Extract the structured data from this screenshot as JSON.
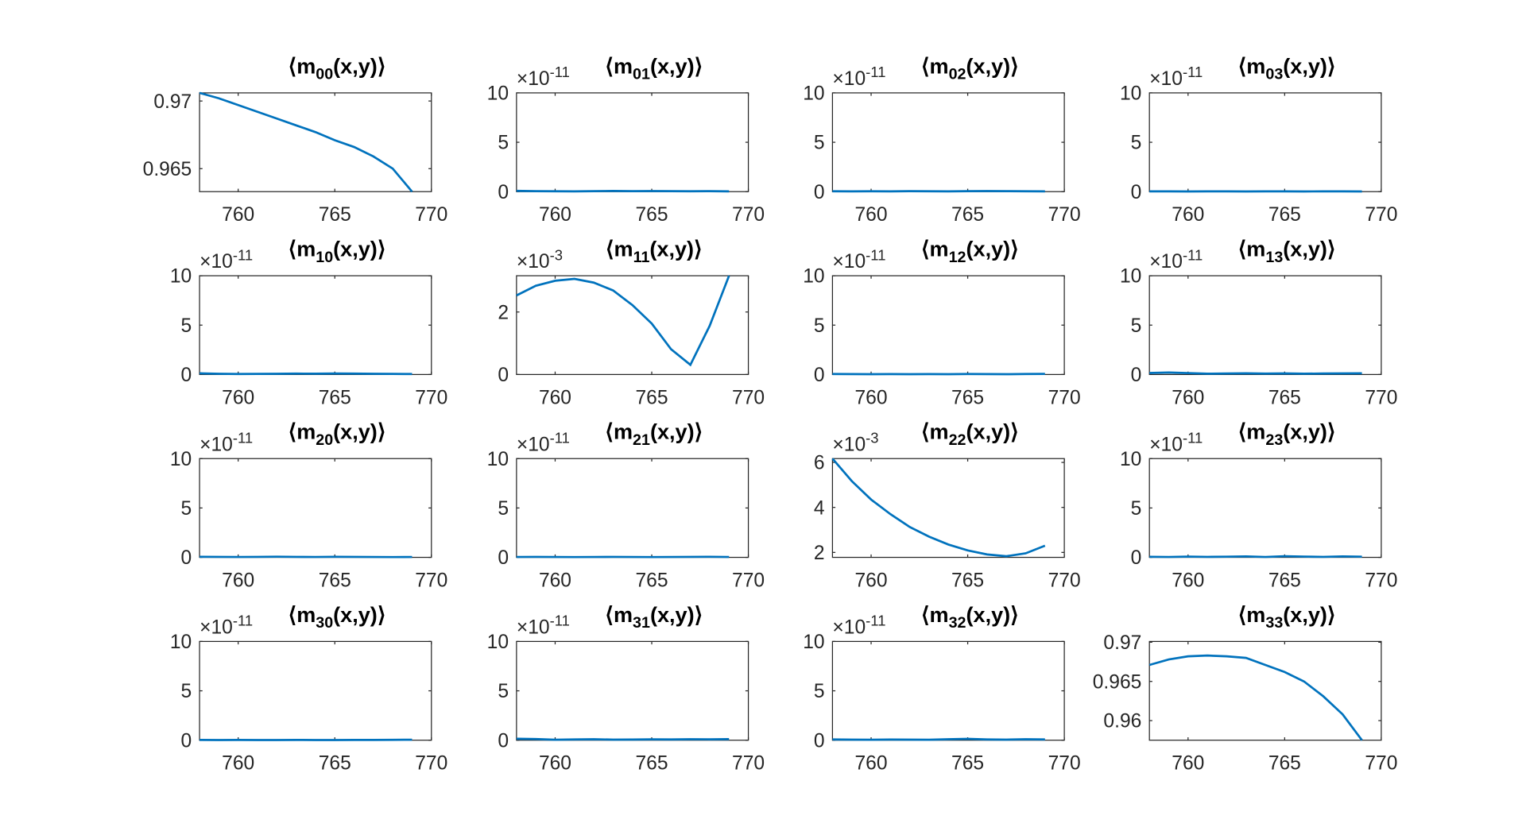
{
  "chart_data": [
    {
      "type": "line",
      "title": "⟨m",
      "title_subscript": "00",
      "title_suffix": "(x,y)⟩",
      "x": [
        758,
        759,
        760,
        761,
        762,
        763,
        764,
        765,
        766,
        767,
        768,
        769
      ],
      "values": [
        0.9706,
        0.9702,
        0.9697,
        0.9692,
        0.9687,
        0.9682,
        0.9677,
        0.9671,
        0.9666,
        0.9659,
        0.965,
        0.9633
      ],
      "color": "#0072bd",
      "xlim": [
        758,
        770
      ],
      "xticks": [
        760,
        765,
        770
      ],
      "ylim": [
        0.9633,
        0.9706
      ],
      "yticks": [
        0.965,
        0.97
      ]
    },
    {
      "type": "line",
      "title": "⟨m",
      "title_subscript": "01",
      "title_suffix": "(x,y)⟩",
      "y_exponent_base": "×10",
      "y_exponent_power": "-11",
      "x": [
        758,
        759,
        760,
        761,
        762,
        763,
        764,
        765,
        766,
        767,
        768,
        769
      ],
      "values": [
        0.08,
        0.05,
        0.04,
        0.03,
        0.05,
        0.07,
        0.05,
        0.06,
        0.05,
        0.04,
        0.05,
        0.03
      ],
      "color": "#0072bd",
      "xlim": [
        758,
        770
      ],
      "xticks": [
        760,
        765,
        770
      ],
      "ylim": [
        0,
        10
      ],
      "yticks": [
        0,
        5,
        10
      ]
    },
    {
      "type": "line",
      "title": "⟨m",
      "title_subscript": "02",
      "title_suffix": "(x,y)⟩",
      "y_exponent_base": "×10",
      "y_exponent_power": "-11",
      "x": [
        758,
        759,
        760,
        761,
        762,
        763,
        764,
        765,
        766,
        767,
        768,
        769
      ],
      "values": [
        0.04,
        0.03,
        0.04,
        0.03,
        0.05,
        0.04,
        0.03,
        0.05,
        0.06,
        0.05,
        0.04,
        0.03
      ],
      "color": "#0072bd",
      "xlim": [
        758,
        770
      ],
      "xticks": [
        760,
        765,
        770
      ],
      "ylim": [
        0,
        10
      ],
      "yticks": [
        0,
        5,
        10
      ]
    },
    {
      "type": "line",
      "title": "⟨m",
      "title_subscript": "03",
      "title_suffix": "(x,y)⟩",
      "y_exponent_base": "×10",
      "y_exponent_power": "-11",
      "x": [
        758,
        759,
        760,
        761,
        762,
        763,
        764,
        765,
        766,
        767,
        768,
        769
      ],
      "values": [
        0.03,
        0.03,
        0.02,
        0.03,
        0.03,
        0.02,
        0.03,
        0.03,
        0.02,
        0.03,
        0.03,
        0.02
      ],
      "color": "#0072bd",
      "xlim": [
        758,
        770
      ],
      "xticks": [
        760,
        765,
        770
      ],
      "ylim": [
        0,
        10
      ],
      "yticks": [
        0,
        5,
        10
      ]
    },
    {
      "type": "line",
      "title": "⟨m",
      "title_subscript": "10",
      "title_suffix": "(x,y)⟩",
      "y_exponent_base": "×10",
      "y_exponent_power": "-11",
      "x": [
        758,
        759,
        760,
        761,
        762,
        763,
        764,
        765,
        766,
        767,
        768,
        769
      ],
      "values": [
        0.12,
        0.07,
        0.05,
        0.06,
        0.07,
        0.09,
        0.08,
        0.1,
        0.09,
        0.07,
        0.06,
        0.05
      ],
      "color": "#0072bd",
      "xlim": [
        758,
        770
      ],
      "xticks": [
        760,
        765,
        770
      ],
      "ylim": [
        0,
        10
      ],
      "yticks": [
        0,
        5,
        10
      ]
    },
    {
      "type": "line",
      "title": "⟨m",
      "title_subscript": "11",
      "title_suffix": "(x,y)⟩",
      "y_exponent_base": "×10",
      "y_exponent_power": "-3",
      "x": [
        758,
        759,
        760,
        761,
        762,
        763,
        764,
        765,
        766,
        767,
        768,
        769
      ],
      "values": [
        2.53,
        2.84,
        3.0,
        3.06,
        2.94,
        2.69,
        2.22,
        1.63,
        0.81,
        0.31,
        1.56,
        3.16
      ],
      "color": "#0072bd",
      "xlim": [
        758,
        770
      ],
      "xticks": [
        760,
        765,
        770
      ],
      "ylim": [
        0,
        3.16
      ],
      "yticks": [
        0,
        2
      ]
    },
    {
      "type": "line",
      "title": "⟨m",
      "title_subscript": "12",
      "title_suffix": "(x,y)⟩",
      "y_exponent_base": "×10",
      "y_exponent_power": "-11",
      "x": [
        758,
        759,
        760,
        761,
        762,
        763,
        764,
        765,
        766,
        767,
        768,
        769
      ],
      "values": [
        0.05,
        0.04,
        0.03,
        0.04,
        0.03,
        0.04,
        0.03,
        0.05,
        0.04,
        0.03,
        0.05,
        0.06
      ],
      "color": "#0072bd",
      "xlim": [
        758,
        770
      ],
      "xticks": [
        760,
        765,
        770
      ],
      "ylim": [
        0,
        10
      ],
      "yticks": [
        0,
        5,
        10
      ]
    },
    {
      "type": "line",
      "title": "⟨m",
      "title_subscript": "13",
      "title_suffix": "(x,y)⟩",
      "y_exponent_base": "×10",
      "y_exponent_power": "-11",
      "x": [
        758,
        759,
        760,
        761,
        762,
        763,
        764,
        765,
        766,
        767,
        768,
        769
      ],
      "values": [
        0.15,
        0.2,
        0.14,
        0.08,
        0.1,
        0.12,
        0.09,
        0.11,
        0.08,
        0.1,
        0.11,
        0.12
      ],
      "color": "#0072bd",
      "xlim": [
        758,
        770
      ],
      "xticks": [
        760,
        765,
        770
      ],
      "ylim": [
        0,
        10
      ],
      "yticks": [
        0,
        5,
        10
      ]
    },
    {
      "type": "line",
      "title": "⟨m",
      "title_subscript": "20",
      "title_suffix": "(x,y)⟩",
      "y_exponent_base": "×10",
      "y_exponent_power": "-11",
      "x": [
        758,
        759,
        760,
        761,
        762,
        763,
        764,
        765,
        766,
        767,
        768,
        769
      ],
      "values": [
        0.06,
        0.05,
        0.04,
        0.05,
        0.07,
        0.05,
        0.04,
        0.06,
        0.05,
        0.04,
        0.03,
        0.04
      ],
      "color": "#0072bd",
      "xlim": [
        758,
        770
      ],
      "xticks": [
        760,
        765,
        770
      ],
      "ylim": [
        0,
        10
      ],
      "yticks": [
        0,
        5,
        10
      ]
    },
    {
      "type": "line",
      "title": "⟨m",
      "title_subscript": "21",
      "title_suffix": "(x,y)⟩",
      "y_exponent_base": "×10",
      "y_exponent_power": "-11",
      "x": [
        758,
        759,
        760,
        761,
        762,
        763,
        764,
        765,
        766,
        767,
        768,
        769
      ],
      "values": [
        0.04,
        0.05,
        0.04,
        0.03,
        0.04,
        0.05,
        0.04,
        0.03,
        0.04,
        0.05,
        0.06,
        0.04
      ],
      "color": "#0072bd",
      "xlim": [
        758,
        770
      ],
      "xticks": [
        760,
        765,
        770
      ],
      "ylim": [
        0,
        10
      ],
      "yticks": [
        0,
        5,
        10
      ]
    },
    {
      "type": "line",
      "title": "⟨m",
      "title_subscript": "22",
      "title_suffix": "(x,y)⟩",
      "y_exponent_base": "×10",
      "y_exponent_power": "-3",
      "x": [
        758,
        759,
        760,
        761,
        762,
        763,
        764,
        765,
        766,
        767,
        768,
        769
      ],
      "values": [
        6.17,
        5.17,
        4.35,
        3.7,
        3.13,
        2.7,
        2.35,
        2.09,
        1.91,
        1.83,
        1.96,
        2.3
      ],
      "color": "#0072bd",
      "xlim": [
        758,
        770
      ],
      "xticks": [
        760,
        765,
        770
      ],
      "ylim": [
        1.78,
        6.17
      ],
      "yticks": [
        2,
        4,
        6
      ]
    },
    {
      "type": "line",
      "title": "⟨m",
      "title_subscript": "23",
      "title_suffix": "(x,y)⟩",
      "y_exponent_base": "×10",
      "y_exponent_power": "-11",
      "x": [
        758,
        759,
        760,
        761,
        762,
        763,
        764,
        765,
        766,
        767,
        768,
        769
      ],
      "values": [
        0.06,
        0.04,
        0.08,
        0.05,
        0.07,
        0.1,
        0.04,
        0.12,
        0.08,
        0.05,
        0.1,
        0.07
      ],
      "color": "#0072bd",
      "xlim": [
        758,
        770
      ],
      "xticks": [
        760,
        765,
        770
      ],
      "ylim": [
        0,
        10
      ],
      "yticks": [
        0,
        5,
        10
      ]
    },
    {
      "type": "line",
      "title": "⟨m",
      "title_subscript": "30",
      "title_suffix": "(x,y)⟩",
      "y_exponent_base": "×10",
      "y_exponent_power": "-11",
      "x": [
        758,
        759,
        760,
        761,
        762,
        763,
        764,
        765,
        766,
        767,
        768,
        769
      ],
      "values": [
        0.03,
        0.02,
        0.03,
        0.02,
        0.02,
        0.03,
        0.02,
        0.02,
        0.03,
        0.03,
        0.04,
        0.05
      ],
      "color": "#0072bd",
      "xlim": [
        758,
        770
      ],
      "xticks": [
        760,
        765,
        770
      ],
      "ylim": [
        0,
        10
      ],
      "yticks": [
        0,
        5,
        10
      ]
    },
    {
      "type": "line",
      "title": "⟨m",
      "title_subscript": "31",
      "title_suffix": "(x,y)⟩",
      "y_exponent_base": "×10",
      "y_exponent_power": "-11",
      "x": [
        758,
        759,
        760,
        761,
        762,
        763,
        764,
        765,
        766,
        767,
        768,
        769
      ],
      "values": [
        0.15,
        0.12,
        0.05,
        0.08,
        0.1,
        0.06,
        0.07,
        0.09,
        0.08,
        0.1,
        0.09,
        0.11
      ],
      "color": "#0072bd",
      "xlim": [
        758,
        770
      ],
      "xticks": [
        760,
        765,
        770
      ],
      "ylim": [
        0,
        10
      ],
      "yticks": [
        0,
        5,
        10
      ]
    },
    {
      "type": "line",
      "title": "⟨m",
      "title_subscript": "32",
      "title_suffix": "(x,y)⟩",
      "y_exponent_base": "×10",
      "y_exponent_power": "-11",
      "x": [
        758,
        759,
        760,
        761,
        762,
        763,
        764,
        765,
        766,
        767,
        768,
        769
      ],
      "values": [
        0.08,
        0.06,
        0.05,
        0.07,
        0.06,
        0.05,
        0.1,
        0.14,
        0.08,
        0.06,
        0.1,
        0.08
      ],
      "color": "#0072bd",
      "xlim": [
        758,
        770
      ],
      "xticks": [
        760,
        765,
        770
      ],
      "ylim": [
        0,
        10
      ],
      "yticks": [
        0,
        5,
        10
      ]
    },
    {
      "type": "line",
      "title": "⟨m",
      "title_subscript": "33",
      "title_suffix": "(x,y)⟩",
      "x": [
        758,
        759,
        760,
        761,
        762,
        763,
        764,
        765,
        766,
        767,
        768,
        769
      ],
      "values": [
        0.9671,
        0.9678,
        0.9682,
        0.9683,
        0.9682,
        0.968,
        0.9671,
        0.9662,
        0.965,
        0.9631,
        0.9608,
        0.9575
      ],
      "color": "#0072bd",
      "xlim": [
        758,
        770
      ],
      "xticks": [
        760,
        765,
        770
      ],
      "ylim": [
        0.9575,
        0.9701
      ],
      "yticks": [
        0.96,
        0.965,
        0.97
      ]
    }
  ]
}
